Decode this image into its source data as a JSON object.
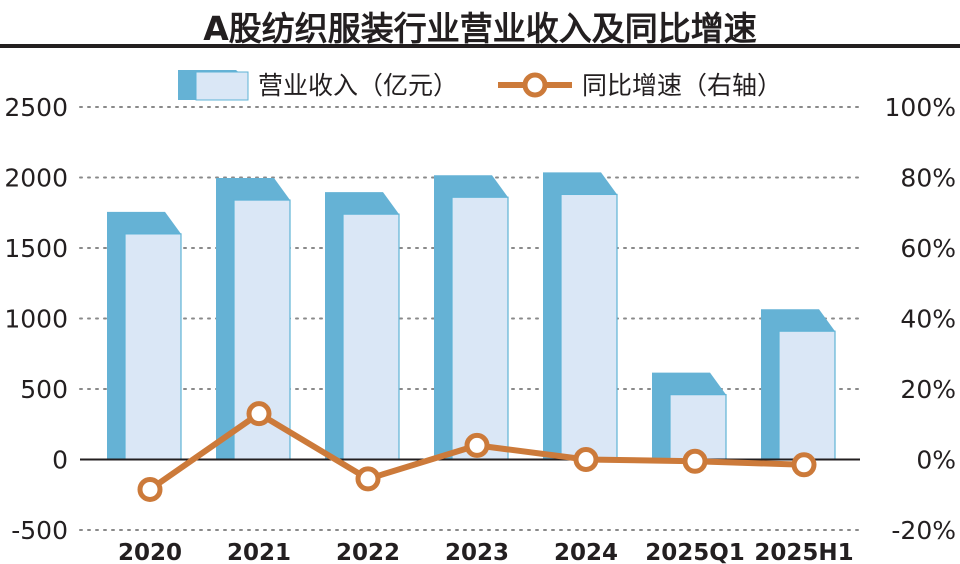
{
  "title": "A股纺织服装行业营业收入及同比增速",
  "colors": {
    "bar_front": "#dae7f6",
    "bar_outline": "#5fb3d6",
    "bar_back": "#65b2d5",
    "line": "#cc7a3a",
    "grid": "#8a8a8a",
    "axis": "#231f20"
  },
  "legend": {
    "position": "top-center",
    "revenue_label": "营业收入（亿元）",
    "growth_label": "同比增速（右轴）"
  },
  "chart_data": {
    "type": "bar",
    "categories": [
      "2020",
      "2021",
      "2022",
      "2023",
      "2024",
      "2025Q1",
      "2025H1"
    ],
    "series": [
      {
        "name": "营业收入（亿元）",
        "type": "bar",
        "axis": "left",
        "values": [
          1600,
          1840,
          1740,
          1860,
          1880,
          460,
          910
        ]
      },
      {
        "name": "同比增速（右轴）",
        "type": "line",
        "axis": "right",
        "values": [
          -8.5,
          13.0,
          -5.5,
          4.0,
          0.0,
          -0.5,
          -1.5
        ]
      }
    ],
    "left_axis": {
      "ylim": [
        -500,
        2500
      ],
      "ticks": [
        "2500",
        "2000",
        "1500",
        "1000",
        "500",
        "0",
        "-500"
      ]
    },
    "right_axis": {
      "ylim": [
        -20,
        100
      ],
      "ticks": [
        "100%",
        "80%",
        "60%",
        "40%",
        "20%",
        "0%",
        "-20%"
      ]
    },
    "grid": true,
    "xlabel": "",
    "ylabel": ""
  }
}
